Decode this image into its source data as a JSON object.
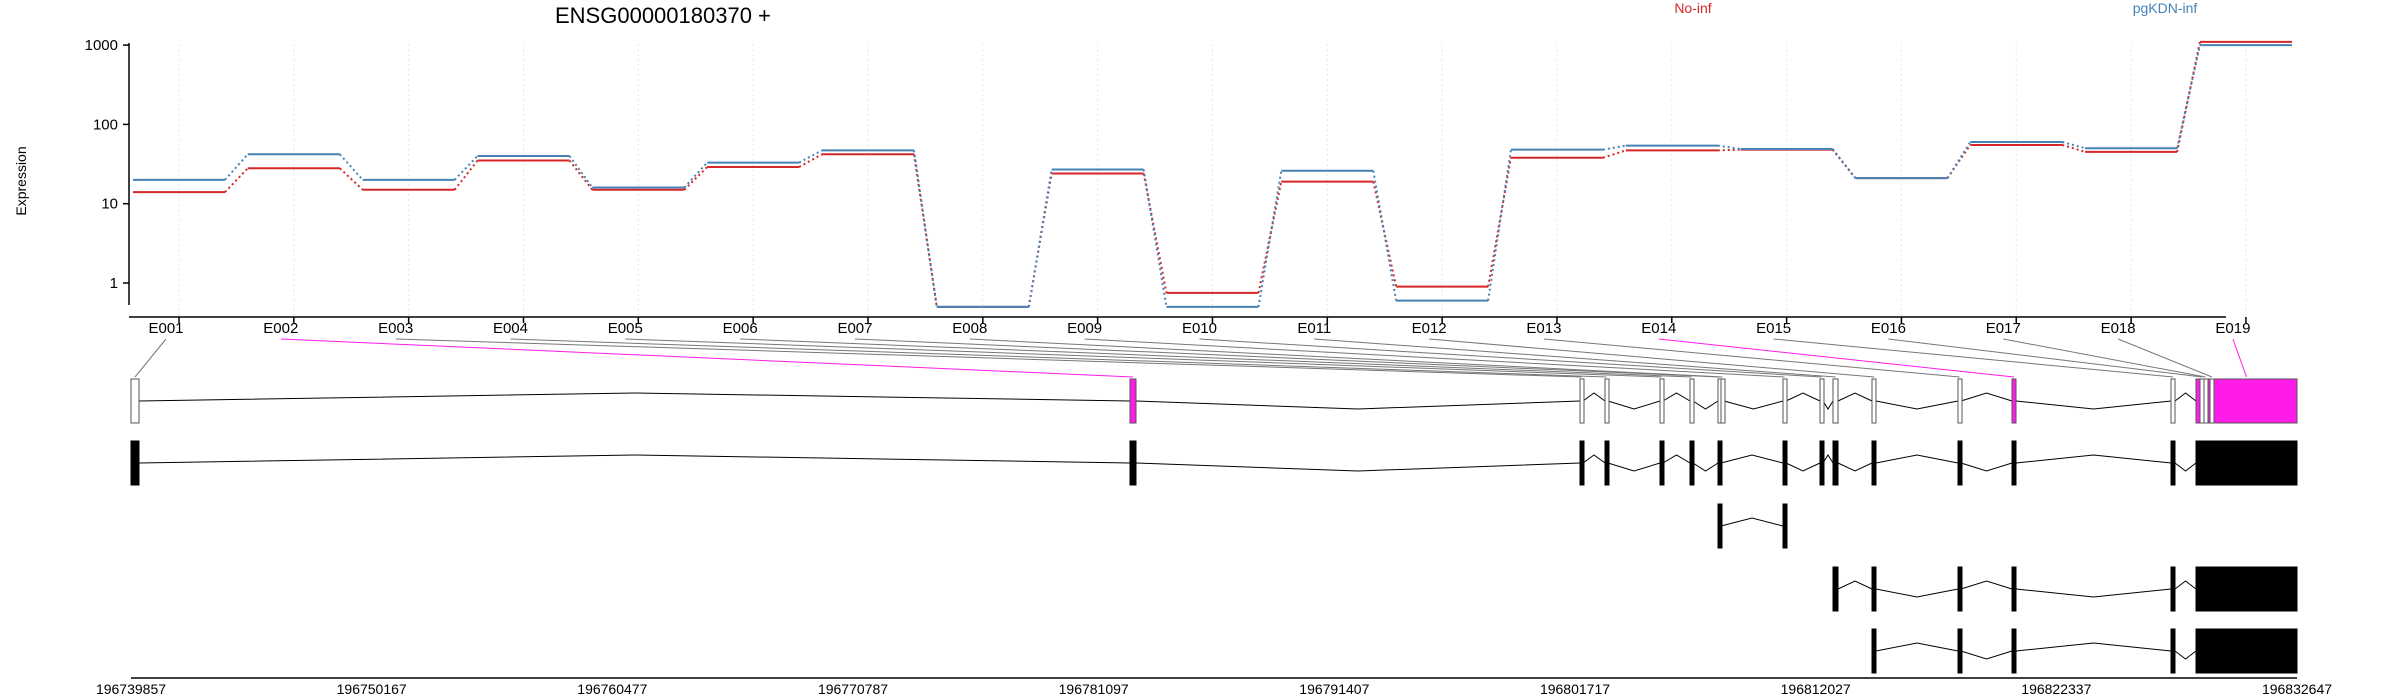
{
  "chart_data": {
    "type": "line",
    "title": "ENSG00000180370 +",
    "ylabel": "Expression",
    "xlabel": "",
    "y_scale": "log",
    "y_ticks": [
      "1",
      "10",
      "100",
      "1000"
    ],
    "ylim": [
      0.35,
      1500
    ],
    "grid": "vertical dotted",
    "legend_position": "top-right",
    "categories": [
      "E001",
      "E002",
      "E003",
      "E004",
      "E005",
      "E006",
      "E007",
      "E008",
      "E009",
      "E010",
      "E011",
      "E012",
      "E013",
      "E014",
      "E015",
      "E016",
      "E017",
      "E018",
      "E019"
    ],
    "series": [
      {
        "name": "No-inf",
        "color": "#d62728",
        "values": [
          14,
          28,
          15,
          35,
          15,
          29,
          42,
          0.5,
          24,
          0.75,
          19,
          0.9,
          38,
          47,
          48,
          21,
          55,
          45,
          1100
        ]
      },
      {
        "name": "pgKDN-inf",
        "color": "#4682b4",
        "values": [
          20,
          42,
          20,
          40,
          16,
          33,
          47,
          0.5,
          27,
          0.5,
          26,
          0.6,
          48,
          54,
          49,
          21,
          60,
          50,
          1000
        ]
      }
    ],
    "genomic_axis_ticks": [
      "196739857",
      "196750167",
      "196760477",
      "196770787",
      "196781097",
      "196791407",
      "196801717",
      "196812027",
      "196822337",
      "196832647"
    ],
    "gene_model": {
      "highlight_color": "#ff1ce8",
      "highlighted_exons": [
        "E002",
        "E014",
        "E019"
      ],
      "transcript_count": 5
    }
  }
}
